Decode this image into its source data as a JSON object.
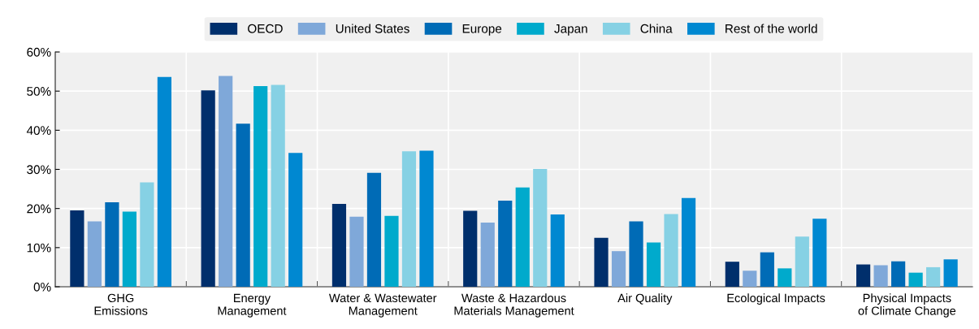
{
  "chart_data": {
    "type": "bar",
    "categories": [
      "GHG\nEmissions",
      "Energy\nManagement",
      "Water & Wastewater\nManagement",
      "Waste & Hazardous\nMaterials Management",
      "Air Quality",
      "Ecological Impacts",
      "Physical Impacts\nof Climate Change"
    ],
    "series": [
      {
        "name": "OECD",
        "color": "#002f6c",
        "values": [
          19.5,
          50.2,
          21.2,
          19.4,
          12.5,
          6.4,
          5.7
        ]
      },
      {
        "name": "United States",
        "color": "#7fa8d9",
        "values": [
          16.7,
          53.9,
          17.9,
          16.4,
          9.1,
          4.1,
          5.5
        ]
      },
      {
        "name": "Europe",
        "color": "#006bb6",
        "values": [
          21.6,
          41.7,
          29.1,
          22.0,
          16.7,
          8.8,
          6.5
        ]
      },
      {
        "name": "Japan",
        "color": "#00aacc",
        "values": [
          19.2,
          51.3,
          18.1,
          25.4,
          11.3,
          4.7,
          3.6
        ]
      },
      {
        "name": "China",
        "color": "#86d1e4",
        "values": [
          26.7,
          51.6,
          34.6,
          30.1,
          18.6,
          12.8,
          5.0
        ]
      },
      {
        "name": "Rest of the world",
        "color": "#0088d1",
        "values": [
          53.6,
          34.2,
          34.8,
          18.5,
          22.7,
          17.4,
          7.0
        ]
      }
    ],
    "ylim": [
      0,
      60
    ],
    "yticks": [
      {
        "value": 0,
        "label": "0%"
      },
      {
        "value": 10,
        "label": "10%"
      },
      {
        "value": 20,
        "label": "20%"
      },
      {
        "value": 30,
        "label": "30%"
      },
      {
        "value": 40,
        "label": "40%"
      },
      {
        "value": 50,
        "label": "50%"
      },
      {
        "value": 60,
        "label": "60%"
      }
    ],
    "grid": true,
    "legend": "top"
  }
}
